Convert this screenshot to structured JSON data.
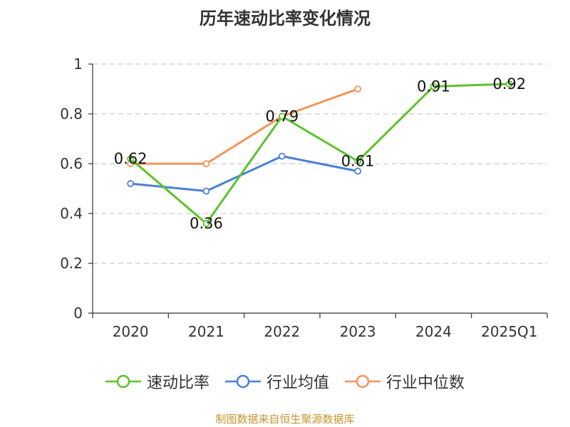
{
  "title": "历年速动比率变化情况",
  "source_note": "制图数据来自恒生聚源数据库",
  "colors": {
    "speed_ratio": "#5bc32a",
    "industry_mean": "#4a7fd8",
    "industry_median": "#f5935a",
    "grid": "#cccccc",
    "axis": "#333333"
  },
  "legend": [
    {
      "label": "速动比率",
      "color": "#5bc32a"
    },
    {
      "label": "行业均值",
      "color": "#4a7fd8"
    },
    {
      "label": "行业中位数",
      "color": "#f5935a"
    }
  ],
  "chart_data": {
    "type": "line",
    "title": "历年速动比率变化情况",
    "categories": [
      "2020",
      "2021",
      "2022",
      "2023",
      "2024",
      "2025Q1"
    ],
    "ylim": [
      0,
      1
    ],
    "yticks": [
      "0",
      "0.2",
      "0.4",
      "0.6",
      "0.8",
      "1"
    ],
    "yticks_values": [
      0,
      0.2,
      0.4,
      0.6,
      0.8,
      1
    ],
    "grid": true,
    "legend_position": "bottom",
    "series": [
      {
        "name": "速动比率",
        "color": "#5bc32a",
        "values": [
          0.62,
          0.36,
          0.79,
          0.61,
          0.91,
          0.92
        ],
        "labels": [
          "0.62",
          "0.36",
          "0.79",
          "0.61",
          "0.91",
          "0.92"
        ]
      },
      {
        "name": "行业均值",
        "color": "#4a7fd8",
        "values": [
          0.52,
          0.49,
          0.63,
          0.57,
          null,
          null
        ]
      },
      {
        "name": "行业中位数",
        "color": "#f5935a",
        "values": [
          0.6,
          0.6,
          0.79,
          0.9,
          null,
          null
        ]
      }
    ]
  }
}
